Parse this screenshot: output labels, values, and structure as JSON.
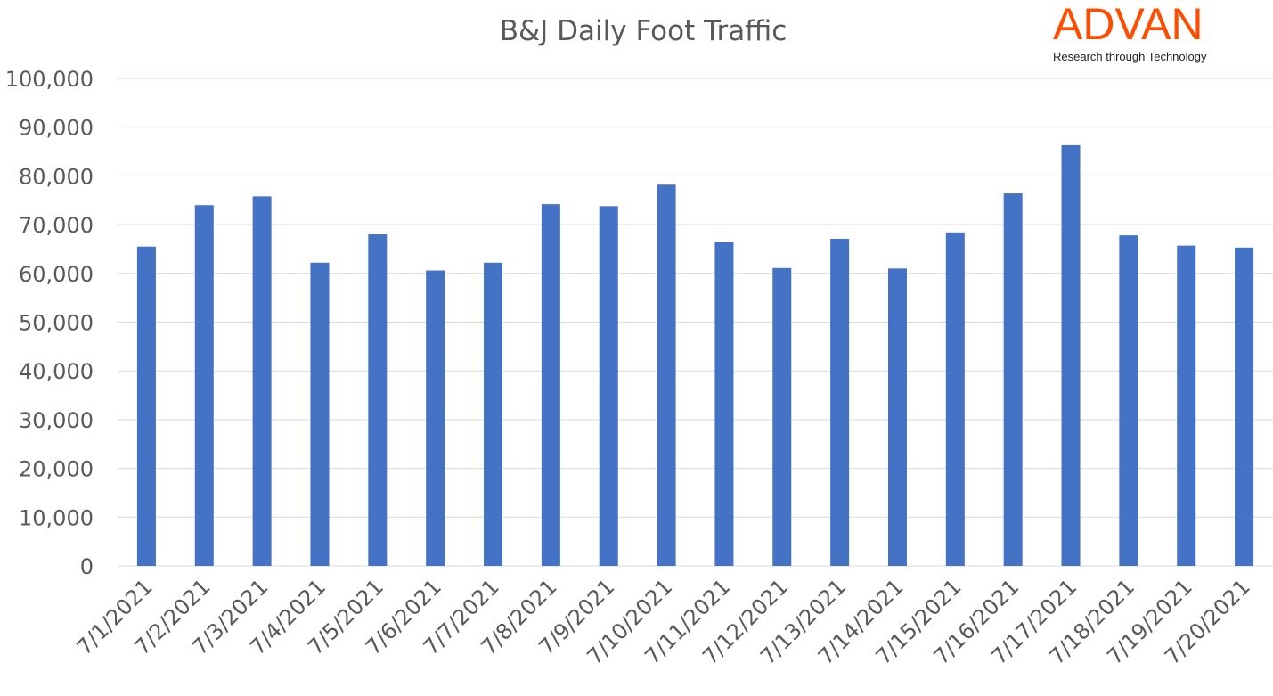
{
  "logo": {
    "name": "ADVAN",
    "tagline": "Research through Technology",
    "color": "#ff4d00"
  },
  "chart_data": {
    "type": "bar",
    "title": "B&J Daily Foot Traffic",
    "xlabel": "",
    "ylabel": "",
    "ylim": [
      0,
      100000
    ],
    "yticks": [
      "0",
      "10,000",
      "20,000",
      "30,000",
      "40,000",
      "50,000",
      "60,000",
      "70,000",
      "80,000",
      "90,000",
      "100,000"
    ],
    "grid": true,
    "bar_color": "#4472c4",
    "categories": [
      "7/1/2021",
      "7/2/2021",
      "7/3/2021",
      "7/4/2021",
      "7/5/2021",
      "7/6/2021",
      "7/7/2021",
      "7/8/2021",
      "7/9/2021",
      "7/10/2021",
      "7/11/2021",
      "7/12/2021",
      "7/13/2021",
      "7/14/2021",
      "7/15/2021",
      "7/16/2021",
      "7/17/2021",
      "7/18/2021",
      "7/19/2021",
      "7/20/2021"
    ],
    "values": [
      65500,
      74000,
      75800,
      62200,
      68000,
      60600,
      62200,
      74200,
      73800,
      78200,
      66400,
      61100,
      67100,
      61000,
      68400,
      76400,
      86300,
      67800,
      65700,
      65300
    ]
  }
}
